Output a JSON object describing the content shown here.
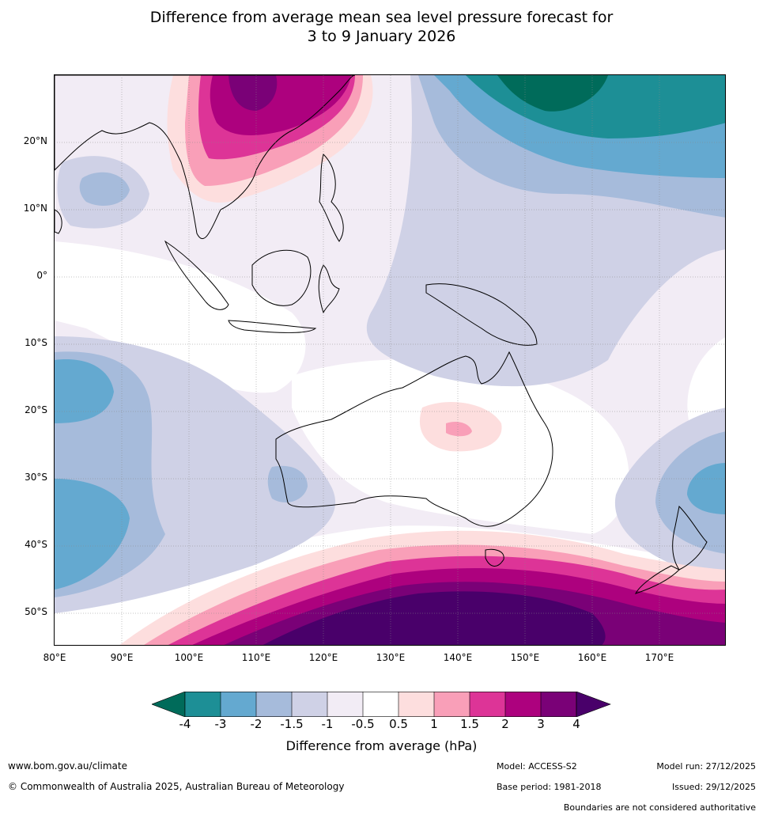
{
  "title": {
    "line1": "Difference from average mean sea level pressure forecast for",
    "line2": "3 to 9 January 2026"
  },
  "map": {
    "lat_labels": [
      "20°N",
      "10°N",
      "0°",
      "10°S",
      "20°S",
      "30°S",
      "40°S",
      "50°S"
    ],
    "lon_labels": [
      "80°E",
      "90°E",
      "100°E",
      "110°E",
      "120°E",
      "130°E",
      "140°E",
      "150°E",
      "160°E",
      "170°E"
    ],
    "extent": {
      "lon_min": 80,
      "lon_max": 180,
      "lat_min": -55,
      "lat_max": 30
    }
  },
  "colorbar": {
    "ticks": [
      "-4",
      "-3",
      "-2",
      "-1.5",
      "-1",
      "-0.5",
      "0.5",
      "1",
      "1.5",
      "2",
      "3",
      "4"
    ],
    "label": "Difference from average (hPa)",
    "colors": {
      "lt_-4": "#006b5a",
      "-4_-3": "#1d8f96",
      "-3_-2": "#64a9d0",
      "-2_-1.5": "#a6bbdb",
      "-1.5_-1": "#cfd1e6",
      "-1_-0.5": "#f2ecf5",
      "-0.5_0.5": "#ffffff",
      "0.5_1": "#fddede",
      "1_1.5": "#f99fb8",
      "1.5_2": "#dd3497",
      "2_3": "#ad017e",
      "3_4": "#7a0177",
      "gt_4": "#49006a"
    }
  },
  "footer": {
    "website": "www.bom.gov.au/climate",
    "copyright": "© Commonwealth of Australia 2025, Australian Bureau of Meteorology",
    "model": "Model: ACCESS-S2",
    "base_period": "Base period: 1981-2018",
    "model_run": "Model run: 27/12/2025",
    "issued": "Issued: 29/12/2025",
    "disclaimer": "Boundaries are not considered authoritative"
  }
}
